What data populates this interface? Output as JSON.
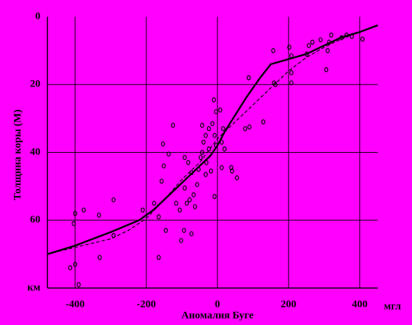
{
  "chart_data": {
    "type": "scatter",
    "x_label": "Аномалия  Буге",
    "y_label": "Толщина коры (М)",
    "x_unit": "мгл",
    "xlim": [
      -478,
      451
    ],
    "ylim": [
      80,
      0
    ],
    "xticks": [
      -400,
      -200,
      0,
      200,
      400
    ],
    "yticks": [
      0,
      20,
      40,
      60,
      {
        "value": 80,
        "label": "км"
      }
    ],
    "grid": true,
    "series": [
      {
        "type": "line",
        "style": "solid",
        "color": "#000000",
        "x": [
          -478,
          -400,
          -300,
          -220,
          -180,
          -140,
          -100,
          -60,
          -20,
          0,
          20,
          50,
          80,
          120,
          150,
          200,
          250,
          300,
          350,
          400,
          460
        ],
        "values": [
          70,
          67.5,
          63.5,
          60,
          57,
          53,
          49,
          45,
          41,
          38,
          34,
          29,
          24,
          18,
          14,
          12.5,
          11,
          8.5,
          6,
          4.5,
          2.5
        ]
      },
      {
        "type": "line",
        "style": "dashed",
        "color": "#000000",
        "x": [
          -478,
          -400,
          -300,
          -250,
          -200,
          -150,
          -100,
          -50,
          0,
          50,
          100,
          150,
          200,
          250,
          300,
          350,
          400,
          460
        ],
        "values": [
          70,
          68,
          65.5,
          63,
          59.5,
          54,
          48,
          43,
          36,
          31,
          26,
          21,
          16,
          12,
          9,
          6.5,
          4.5,
          2.5
        ]
      },
      {
        "type": "scatter",
        "color": "#000000",
        "x": [
          -404,
          -400,
          -376,
          -333,
          -292,
          -292,
          -331,
          -414,
          -400,
          -390,
          -210,
          -178,
          -165,
          -165,
          -145,
          -151,
          -153,
          -137,
          -157,
          -116,
          -106,
          -102,
          -94,
          -73,
          -92,
          -86,
          -92,
          -82,
          -73,
          -67,
          -78,
          -63,
          -57,
          -53,
          -47,
          -43,
          -39,
          -33,
          -43,
          -24,
          -14,
          -8,
          -4,
          -24,
          -31,
          -18,
          -33,
          -10,
          -4,
          8,
          16,
          12,
          20,
          12,
          -8,
          39,
          41,
          55,
          78,
          90,
          88,
          129,
          157,
          159,
          163,
          202,
          208,
          208,
          208,
          251,
          257,
          267,
          290,
          306,
          310,
          314,
          320,
          349,
          363,
          378,
          408,
          -125
        ],
        "values": [
          61,
          58,
          57,
          58.5,
          54,
          64.5,
          71,
          74,
          73,
          79,
          57,
          55,
          59,
          71,
          63,
          44,
          37.5,
          40.5,
          48.5,
          55,
          57,
          66,
          63,
          64,
          50.5,
          55,
          41.5,
          43,
          46,
          52.5,
          54,
          56,
          49.5,
          45,
          41.5,
          40,
          37,
          35,
          32,
          33,
          31.5,
          35,
          38,
          39,
          43,
          45.5,
          46.5,
          24.5,
          28,
          27.5,
          33,
          37,
          39,
          44.5,
          53,
          44.5,
          45.5,
          47.5,
          33,
          32.5,
          18,
          31,
          10,
          19.5,
          20,
          9,
          11.5,
          16.5,
          19.5,
          11,
          8.5,
          7.5,
          6.8,
          15.6,
          10,
          7.5,
          5.4,
          6.2,
          5.4,
          5.8,
          6.6,
          32
        ]
      }
    ]
  }
}
